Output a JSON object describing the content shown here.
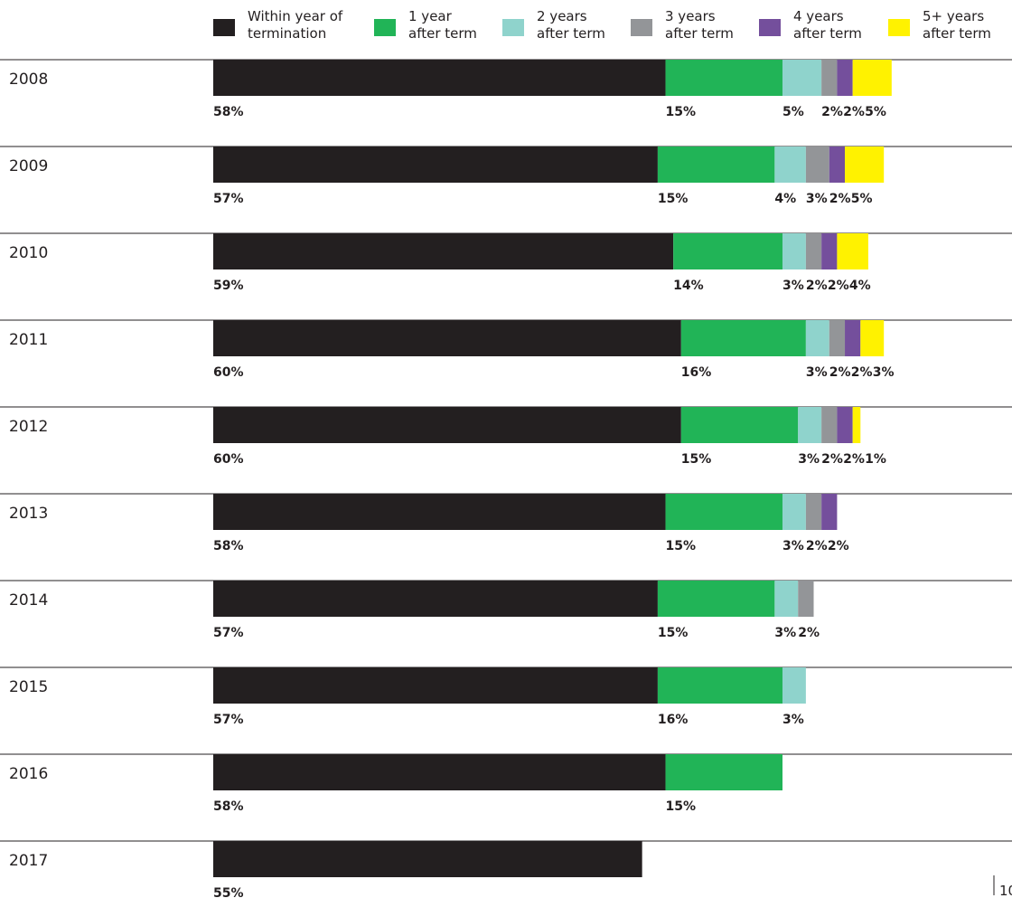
{
  "chart_data": {
    "type": "bar",
    "orientation": "horizontal",
    "stacked": true,
    "title": "",
    "xlabel": "",
    "ylabel": "",
    "xlim": [
      0,
      100
    ],
    "grid": false,
    "legend_position": "top",
    "categories": [
      "2008",
      "2009",
      "2010",
      "2011",
      "2012",
      "2013",
      "2014",
      "2015",
      "2016",
      "2017"
    ],
    "series": [
      {
        "name": "Within year of termination",
        "legend_lines": [
          "Within year of",
          "termination"
        ],
        "color": "#231f20",
        "values": [
          58,
          57,
          59,
          60,
          60,
          58,
          57,
          57,
          58,
          55
        ]
      },
      {
        "name": "1 year after term",
        "legend_lines": [
          "1 year",
          "after term"
        ],
        "color": "#21b457",
        "values": [
          15,
          15,
          14,
          16,
          15,
          15,
          15,
          16,
          15,
          null
        ]
      },
      {
        "name": "2 years after term",
        "legend_lines": [
          "2 years",
          "after term"
        ],
        "color": "#8fd3cc",
        "values": [
          5,
          4,
          3,
          3,
          3,
          3,
          3,
          3,
          null,
          null
        ]
      },
      {
        "name": "3 years after term",
        "legend_lines": [
          "3 years",
          "after term"
        ],
        "color": "#939598",
        "values": [
          2,
          3,
          2,
          2,
          2,
          2,
          2,
          null,
          null,
          null
        ]
      },
      {
        "name": "4 years after term",
        "legend_lines": [
          "4 years",
          "after term"
        ],
        "color": "#744f9c",
        "values": [
          2,
          2,
          2,
          2,
          2,
          2,
          null,
          null,
          null,
          null
        ]
      },
      {
        "name": "5+ years after term",
        "legend_lines": [
          "5+ years",
          "after term"
        ],
        "color": "#fff200",
        "values": [
          5,
          5,
          4,
          3,
          1,
          null,
          null,
          null,
          null,
          null
        ]
      }
    ],
    "value_suffix": "%"
  },
  "page": {
    "number": "10"
  }
}
